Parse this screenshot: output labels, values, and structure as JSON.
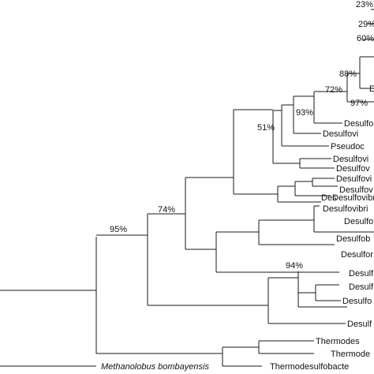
{
  "bootstrap": {
    "b23": "23%",
    "b29": "29%",
    "b60": "60%",
    "b88": "88%",
    "b72": "72%",
    "b97": "97%",
    "b93": "93%",
    "b51": "51%",
    "b74": "74%",
    "b95": "95%",
    "b94": "94%"
  },
  "taxa": {
    "t_b": "E",
    "t_desulfo_1": "Desulfo",
    "t_desulfovi_1": "Desulfovi",
    "t_pseudoc": "Pseudoc",
    "t_desulfovi_2": "Desulfovi",
    "t_desulfov_1": "Desulfov",
    "t_desulfovi_3": "Desulfovi",
    "t_desulfov_2": "Desulfov",
    "t_desulfovibr": "Desulfovibr",
    "t_desulfovibri": "Desulfovibri",
    "t_des": "Des",
    "t_desulfo_2": "Desulfo",
    "t_desulfob": "Desulfob",
    "t_desulfor": "Desulfor",
    "t_desulf_1": "Desulf",
    "t_desulfo_3": "Desulfo",
    "t_desulf_2": "Desulf",
    "t_desulf_3": "Desulf",
    "t_thermodes": "Thermodes",
    "t_thermode": "Thermode",
    "t_methanolobus": "Methanolobus bombayensis",
    "t_thermodesulfobacte": "Thermodesulfobacte"
  }
}
